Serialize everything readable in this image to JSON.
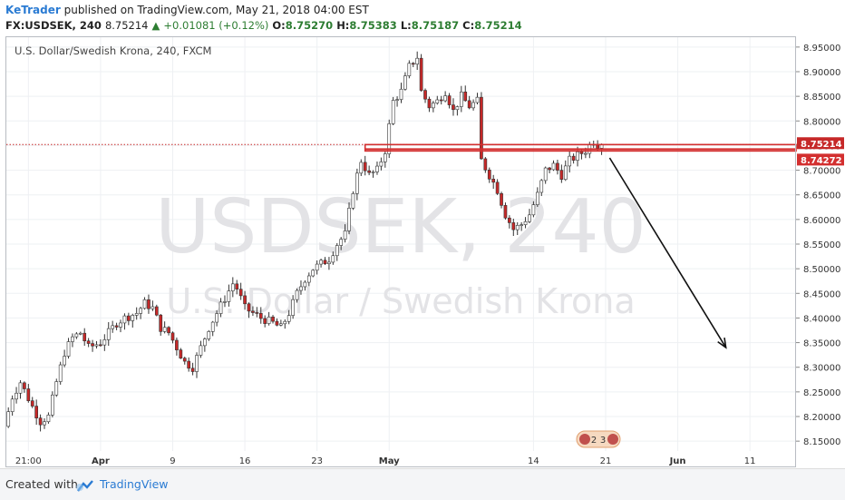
{
  "header": {
    "author": "KeTrader",
    "published_text": "published on TradingView.com, May 21, 2018 04:00 EST",
    "symbol": "FX:USDSEK, 240",
    "last": "8.75214",
    "change_arrow": "▲",
    "change": "+0.01081 (+0.12%)",
    "o_label": "O:",
    "o": "8.75270",
    "h_label": "H:",
    "h": "8.75383",
    "l_label": "L:",
    "l": "8.75187",
    "c_label": "C:",
    "c": "8.75214"
  },
  "legend": "U.S. Dollar/Swedish Krona, 240, FXCM",
  "watermark": {
    "line1": "USDSEK, 240",
    "line2": "U.S. Dollar / Swedish Krona"
  },
  "footer": {
    "created_with": "Created with",
    "brand": "TradingView"
  },
  "events_badge": {
    "a": "2",
    "b": "3"
  },
  "colors": {
    "up": "#ffffff",
    "down": "#c62828",
    "resistance": "#d32f2f",
    "current": "#c62828",
    "arrow": "#111111"
  },
  "chart_data": {
    "type": "candlestick",
    "symbol": "USDSEK",
    "timeframe": "240",
    "ylim": [
      8.13,
      8.97
    ],
    "y_ticks": [
      "8.15000",
      "8.20000",
      "8.25000",
      "8.30000",
      "8.35000",
      "8.40000",
      "8.45000",
      "8.50000",
      "8.55000",
      "8.60000",
      "8.65000",
      "8.70000",
      "8.75000",
      "8.80000",
      "8.85000",
      "8.90000",
      "8.95000"
    ],
    "x_ticks": [
      "21:00",
      "Apr",
      "9",
      "16",
      "23",
      "May",
      "14",
      "21",
      "Jun",
      "11"
    ],
    "x_tick_bars": [
      5,
      23,
      41,
      59,
      77,
      95,
      131,
      149,
      167,
      185
    ],
    "last_bar_index": 148,
    "total_slots": 197,
    "price_labels": [
      {
        "label": "8.75214",
        "value": 8.75214,
        "kind": "current"
      },
      {
        "label": "8.74272",
        "value": 8.74272,
        "kind": "resistance"
      }
    ],
    "resistance": {
      "value": 8.74272,
      "from_bar": 89,
      "to_bar": 197
    },
    "projection_arrow": {
      "from": [
        150,
        8.725
      ],
      "to": [
        179,
        8.34
      ]
    },
    "anchors": [
      [
        0,
        8.18
      ],
      [
        2,
        8.24
      ],
      [
        4,
        8.27
      ],
      [
        7,
        8.22
      ],
      [
        9,
        8.19
      ],
      [
        11,
        8.2
      ],
      [
        13,
        8.27
      ],
      [
        15,
        8.33
      ],
      [
        17,
        8.36
      ],
      [
        19,
        8.37
      ],
      [
        21,
        8.34
      ],
      [
        24,
        8.35
      ],
      [
        26,
        8.37
      ],
      [
        28,
        8.39
      ],
      [
        30,
        8.4
      ],
      [
        33,
        8.41
      ],
      [
        35,
        8.43
      ],
      [
        37,
        8.42
      ],
      [
        39,
        8.38
      ],
      [
        41,
        8.37
      ],
      [
        43,
        8.34
      ],
      [
        45,
        8.31
      ],
      [
        47,
        8.3
      ],
      [
        49,
        8.34
      ],
      [
        51,
        8.38
      ],
      [
        53,
        8.41
      ],
      [
        55,
        8.44
      ],
      [
        57,
        8.47
      ],
      [
        58,
        8.46
      ],
      [
        60,
        8.42
      ],
      [
        62,
        8.41
      ],
      [
        64,
        8.4
      ],
      [
        67,
        8.39
      ],
      [
        69,
        8.38
      ],
      [
        71,
        8.41
      ],
      [
        73,
        8.45
      ],
      [
        75,
        8.48
      ],
      [
        77,
        8.5
      ],
      [
        79,
        8.51
      ],
      [
        81,
        8.52
      ],
      [
        83,
        8.55
      ],
      [
        85,
        8.57
      ],
      [
        87,
        8.66
      ],
      [
        89,
        8.72
      ],
      [
        91,
        8.69
      ],
      [
        93,
        8.7
      ],
      [
        95,
        8.74
      ],
      [
        97,
        8.84
      ],
      [
        99,
        8.86
      ],
      [
        101,
        8.91
      ],
      [
        103,
        8.93
      ],
      [
        104,
        8.86
      ],
      [
        106,
        8.83
      ],
      [
        108,
        8.84
      ],
      [
        110,
        8.86
      ],
      [
        112,
        8.82
      ],
      [
        114,
        8.85
      ],
      [
        116,
        8.83
      ],
      [
        118,
        8.84
      ],
      [
        119,
        8.72
      ],
      [
        121,
        8.69
      ],
      [
        123,
        8.66
      ],
      [
        125,
        8.61
      ],
      [
        127,
        8.58
      ],
      [
        129,
        8.59
      ],
      [
        131,
        8.61
      ],
      [
        133,
        8.65
      ],
      [
        135,
        8.7
      ],
      [
        137,
        8.71
      ],
      [
        139,
        8.69
      ],
      [
        141,
        8.72
      ],
      [
        143,
        8.73
      ],
      [
        145,
        8.74
      ],
      [
        147,
        8.76
      ],
      [
        148,
        8.752
      ]
    ]
  }
}
